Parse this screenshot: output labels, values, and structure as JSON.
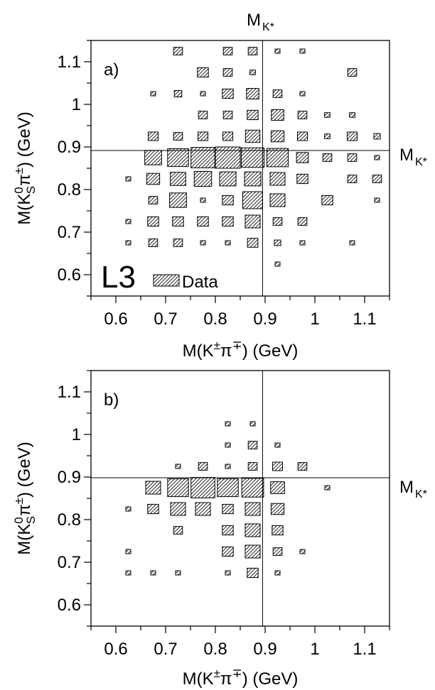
{
  "chart_data": [
    {
      "type": "box",
      "panel_label": "a)",
      "experiment_label": "L3",
      "legend": "Data",
      "xlabel": "M(K±π∓)  (GeV)",
      "ylabel": "M(K⁰Sπ±)  (GeV)",
      "xlim": [
        0.55,
        1.15
      ],
      "ylim": [
        0.55,
        1.15
      ],
      "x_ticks": [
        "0.6",
        "0.7",
        "0.8",
        "0.9",
        "1",
        "1.1"
      ],
      "y_ticks": [
        "0.6",
        "0.7",
        "0.8",
        "0.9",
        "1",
        "1.1"
      ],
      "reference_lines": {
        "mass": 0.892,
        "top_label": "MK*",
        "right_label": "MK*"
      },
      "cells": [
        [
          0.725,
          1.125,
          0.36
        ],
        [
          0.825,
          1.125,
          0.36
        ],
        [
          0.875,
          1.125,
          0.36
        ],
        [
          0.925,
          1.125,
          0.2
        ],
        [
          0.975,
          1.125,
          0.2
        ],
        [
          0.775,
          1.075,
          0.44
        ],
        [
          0.825,
          1.075,
          0.36
        ],
        [
          0.875,
          1.075,
          0.22
        ],
        [
          1.075,
          1.075,
          0.36
        ],
        [
          0.675,
          1.025,
          0.2
        ],
        [
          0.725,
          1.025,
          0.3
        ],
        [
          0.775,
          1.025,
          0.2
        ],
        [
          0.825,
          1.025,
          0.44
        ],
        [
          0.875,
          1.025,
          0.5
        ],
        [
          0.925,
          1.025,
          0.36
        ],
        [
          0.975,
          1.025,
          0.2
        ],
        [
          0.775,
          0.975,
          0.36
        ],
        [
          0.825,
          0.975,
          0.36
        ],
        [
          0.875,
          0.975,
          0.44
        ],
        [
          0.925,
          0.975,
          0.5
        ],
        [
          0.975,
          0.975,
          0.36
        ],
        [
          1.025,
          0.975,
          0.22
        ],
        [
          1.075,
          0.975,
          0.22
        ],
        [
          0.675,
          0.925,
          0.4
        ],
        [
          0.725,
          0.925,
          0.36
        ],
        [
          0.775,
          0.925,
          0.4
        ],
        [
          0.825,
          0.925,
          0.4
        ],
        [
          0.875,
          0.925,
          0.58
        ],
        [
          0.925,
          0.925,
          0.52
        ],
        [
          0.975,
          0.925,
          0.4
        ],
        [
          1.025,
          0.925,
          0.22
        ],
        [
          1.075,
          0.925,
          0.4
        ],
        [
          1.125,
          0.925,
          0.26
        ],
        [
          0.675,
          0.875,
          0.68
        ],
        [
          0.725,
          0.875,
          0.84
        ],
        [
          0.775,
          0.875,
          0.96
        ],
        [
          0.825,
          0.875,
          1.0
        ],
        [
          0.875,
          0.875,
          0.92
        ],
        [
          0.925,
          0.875,
          0.86
        ],
        [
          0.975,
          0.875,
          0.48
        ],
        [
          1.025,
          0.875,
          0.36
        ],
        [
          1.075,
          0.875,
          0.36
        ],
        [
          1.125,
          0.875,
          0.2
        ],
        [
          0.625,
          0.825,
          0.2
        ],
        [
          0.675,
          0.825,
          0.52
        ],
        [
          0.725,
          0.825,
          0.62
        ],
        [
          0.775,
          0.825,
          0.7
        ],
        [
          0.825,
          0.825,
          0.66
        ],
        [
          0.875,
          0.825,
          0.66
        ],
        [
          0.925,
          0.825,
          0.6
        ],
        [
          0.975,
          0.825,
          0.44
        ],
        [
          1.075,
          0.825,
          0.36
        ],
        [
          1.125,
          0.825,
          0.36
        ],
        [
          0.675,
          0.775,
          0.36
        ],
        [
          0.725,
          0.775,
          0.68
        ],
        [
          0.775,
          0.775,
          0.2
        ],
        [
          0.825,
          0.775,
          0.44
        ],
        [
          0.875,
          0.775,
          0.8
        ],
        [
          0.925,
          0.775,
          0.6
        ],
        [
          1.025,
          0.775,
          0.44
        ],
        [
          1.125,
          0.775,
          0.2
        ],
        [
          0.625,
          0.725,
          0.2
        ],
        [
          0.675,
          0.725,
          0.44
        ],
        [
          0.725,
          0.725,
          0.44
        ],
        [
          0.775,
          0.725,
          0.44
        ],
        [
          0.825,
          0.725,
          0.44
        ],
        [
          0.875,
          0.725,
          0.6
        ],
        [
          0.925,
          0.725,
          0.36
        ],
        [
          0.975,
          0.725,
          0.36
        ],
        [
          0.625,
          0.675,
          0.2
        ],
        [
          0.675,
          0.675,
          0.36
        ],
        [
          0.725,
          0.675,
          0.36
        ],
        [
          0.775,
          0.675,
          0.2
        ],
        [
          0.825,
          0.675,
          0.2
        ],
        [
          0.875,
          0.675,
          0.42
        ],
        [
          0.925,
          0.675,
          0.26
        ],
        [
          0.975,
          0.675,
          0.2
        ],
        [
          1.075,
          0.675,
          0.2
        ],
        [
          0.925,
          0.625,
          0.2
        ]
      ]
    },
    {
      "type": "box",
      "panel_label": "b)",
      "xlabel": "M(K±π∓)  (GeV)",
      "ylabel": "M(K⁰Sπ±)  (GeV)",
      "xlim": [
        0.55,
        1.15
      ],
      "ylim": [
        0.55,
        1.15
      ],
      "x_ticks": [
        "0.6",
        "0.7",
        "0.8",
        "0.9",
        "1",
        "1.1"
      ],
      "y_ticks": [
        "0.6",
        "0.7",
        "0.8",
        "0.9",
        "1",
        "1.1"
      ],
      "reference_lines": {
        "mass": 0.892,
        "right_label": "MK*"
      },
      "cells": [
        [
          0.825,
          1.025,
          0.2
        ],
        [
          0.875,
          1.025,
          0.2
        ],
        [
          0.825,
          0.975,
          0.2
        ],
        [
          0.875,
          0.975,
          0.36
        ],
        [
          0.925,
          0.975,
          0.2
        ],
        [
          0.725,
          0.925,
          0.2
        ],
        [
          0.775,
          0.925,
          0.36
        ],
        [
          0.825,
          0.925,
          0.2
        ],
        [
          0.875,
          0.925,
          0.36
        ],
        [
          0.925,
          0.925,
          0.4
        ],
        [
          0.975,
          0.925,
          0.36
        ],
        [
          0.675,
          0.875,
          0.6
        ],
        [
          0.725,
          0.875,
          0.84
        ],
        [
          0.775,
          0.875,
          0.96
        ],
        [
          0.825,
          0.875,
          0.84
        ],
        [
          0.875,
          0.875,
          0.88
        ],
        [
          0.925,
          0.875,
          0.56
        ],
        [
          1.025,
          0.875,
          0.2
        ],
        [
          0.625,
          0.825,
          0.2
        ],
        [
          0.675,
          0.825,
          0.44
        ],
        [
          0.725,
          0.825,
          0.6
        ],
        [
          0.775,
          0.825,
          0.6
        ],
        [
          0.825,
          0.825,
          0.44
        ],
        [
          0.875,
          0.825,
          0.6
        ],
        [
          0.925,
          0.825,
          0.52
        ],
        [
          0.725,
          0.775,
          0.36
        ],
        [
          0.825,
          0.775,
          0.44
        ],
        [
          0.875,
          0.775,
          0.6
        ],
        [
          0.925,
          0.775,
          0.44
        ],
        [
          0.625,
          0.725,
          0.2
        ],
        [
          0.825,
          0.725,
          0.44
        ],
        [
          0.875,
          0.725,
          0.6
        ],
        [
          0.925,
          0.725,
          0.36
        ],
        [
          0.975,
          0.725,
          0.2
        ],
        [
          0.625,
          0.675,
          0.2
        ],
        [
          0.675,
          0.675,
          0.2
        ],
        [
          0.725,
          0.675,
          0.2
        ],
        [
          0.825,
          0.675,
          0.2
        ],
        [
          0.875,
          0.675,
          0.44
        ],
        [
          0.925,
          0.675,
          0.2
        ]
      ]
    }
  ]
}
